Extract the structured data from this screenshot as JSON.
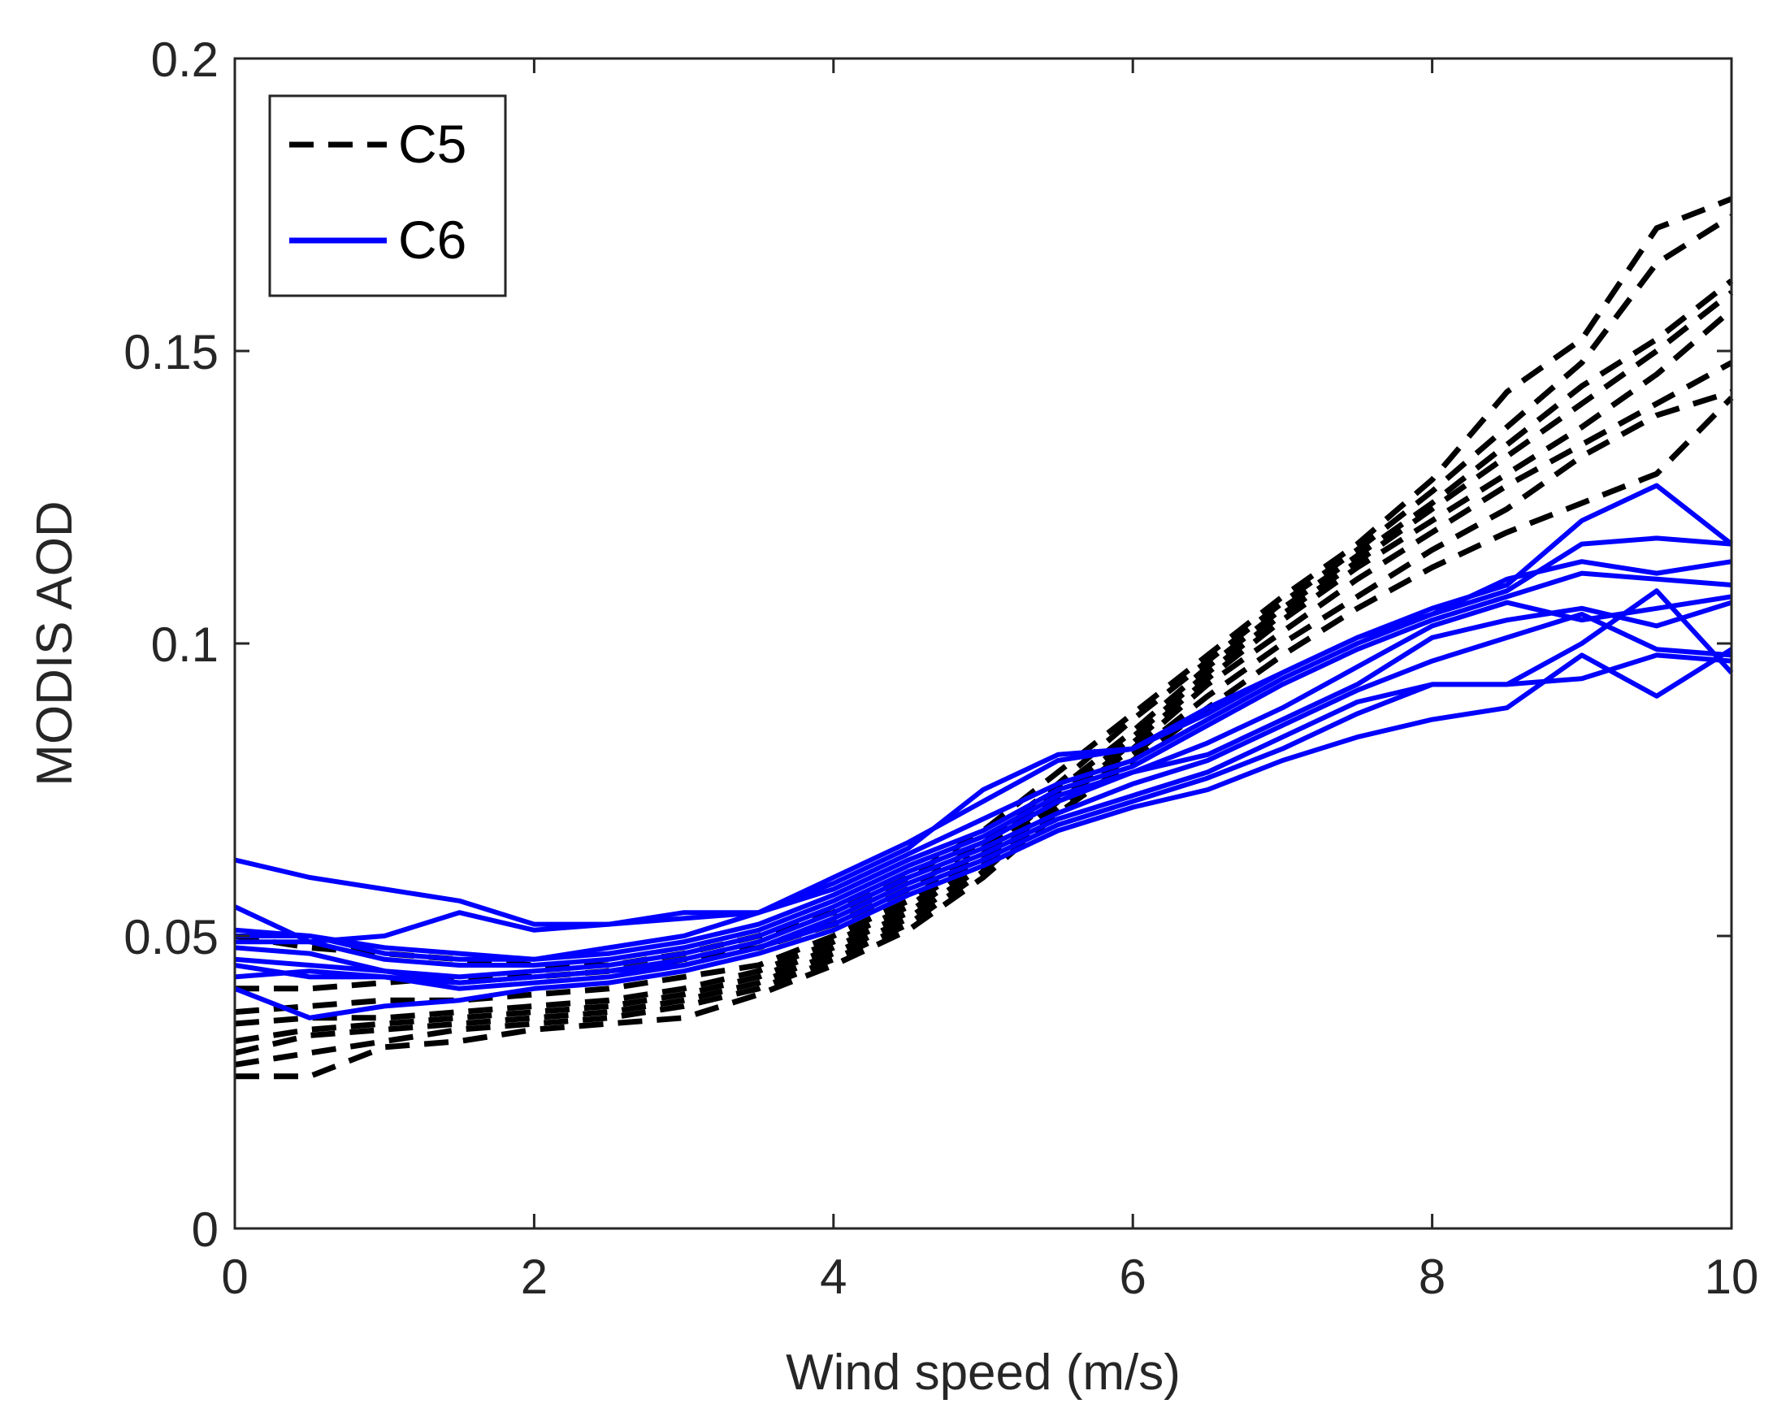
{
  "chart_data": {
    "type": "line",
    "title": "",
    "xlabel": "Wind speed (m/s)",
    "ylabel": "MODIS AOD",
    "xlim": [
      0,
      10
    ],
    "ylim": [
      0,
      0.2
    ],
    "xticks": [
      0,
      2,
      4,
      6,
      8,
      10
    ],
    "yticks": [
      0,
      0.05,
      0.1,
      0.15,
      0.2
    ],
    "xtick_labels": [
      "0",
      "2",
      "4",
      "6",
      "8",
      "10"
    ],
    "ytick_labels": [
      "0",
      "0.05",
      "0.1",
      "0.15",
      "0.2"
    ],
    "grid": false,
    "legend_position": "top-left",
    "x": [
      0,
      0.5,
      1,
      1.5,
      2,
      2.5,
      3,
      3.5,
      4,
      4.5,
      5,
      5.5,
      6,
      6.5,
      7,
      7.5,
      8,
      8.5,
      9,
      9.5,
      10
    ],
    "groups": [
      {
        "name": "C5",
        "color": "#000000",
        "style": "dashed"
      },
      {
        "name": "C6",
        "color": "#0000ff",
        "style": "solid"
      }
    ],
    "series": [
      {
        "name": "C5",
        "group": "C5",
        "values": [
          0.026,
          0.026,
          0.031,
          0.032,
          0.034,
          0.035,
          0.036,
          0.04,
          0.045,
          0.051,
          0.06,
          0.071,
          0.08,
          0.089,
          0.098,
          0.106,
          0.113,
          0.119,
          0.124,
          0.129,
          0.142
        ]
      },
      {
        "name": "C5",
        "group": "C5",
        "values": [
          0.028,
          0.03,
          0.032,
          0.034,
          0.035,
          0.036,
          0.038,
          0.041,
          0.046,
          0.052,
          0.061,
          0.072,
          0.081,
          0.091,
          0.1,
          0.108,
          0.116,
          0.123,
          0.132,
          0.139,
          0.143
        ]
      },
      {
        "name": "C5",
        "group": "C5",
        "values": [
          0.03,
          0.033,
          0.034,
          0.035,
          0.036,
          0.037,
          0.039,
          0.042,
          0.047,
          0.053,
          0.062,
          0.073,
          0.082,
          0.093,
          0.102,
          0.111,
          0.119,
          0.127,
          0.134,
          0.141,
          0.148
        ]
      },
      {
        "name": "C5",
        "group": "C5",
        "values": [
          0.032,
          0.034,
          0.035,
          0.036,
          0.037,
          0.038,
          0.04,
          0.043,
          0.048,
          0.054,
          0.063,
          0.073,
          0.083,
          0.094,
          0.104,
          0.113,
          0.121,
          0.129,
          0.137,
          0.146,
          0.157
        ]
      },
      {
        "name": "C5",
        "group": "C5",
        "values": [
          0.035,
          0.036,
          0.036,
          0.037,
          0.038,
          0.039,
          0.041,
          0.044,
          0.049,
          0.055,
          0.064,
          0.074,
          0.084,
          0.095,
          0.105,
          0.114,
          0.123,
          0.132,
          0.141,
          0.15,
          0.16
        ]
      },
      {
        "name": "C5",
        "group": "C5",
        "values": [
          0.037,
          0.038,
          0.039,
          0.039,
          0.04,
          0.041,
          0.043,
          0.045,
          0.05,
          0.056,
          0.065,
          0.075,
          0.085,
          0.096,
          0.106,
          0.115,
          0.124,
          0.134,
          0.144,
          0.152,
          0.162
        ]
      },
      {
        "name": "C5",
        "group": "C5",
        "values": [
          0.041,
          0.041,
          0.042,
          0.043,
          0.043,
          0.044,
          0.046,
          0.048,
          0.052,
          0.058,
          0.066,
          0.076,
          0.087,
          0.097,
          0.107,
          0.116,
          0.126,
          0.137,
          0.148,
          0.165,
          0.173
        ]
      },
      {
        "name": "C5",
        "group": "C5",
        "values": [
          0.05,
          0.048,
          0.047,
          0.046,
          0.045,
          0.045,
          0.047,
          0.05,
          0.054,
          0.06,
          0.068,
          0.078,
          0.088,
          0.098,
          0.108,
          0.117,
          0.128,
          0.143,
          0.152,
          0.171,
          0.176
        ]
      },
      {
        "name": "C6",
        "group": "C6",
        "values": [
          0.063,
          0.06,
          0.058,
          0.056,
          0.052,
          0.052,
          0.053,
          0.054,
          0.059,
          0.065,
          0.075,
          0.081,
          0.082,
          0.088,
          0.095,
          0.101,
          0.105,
          0.109,
          0.117,
          0.118,
          0.117
        ]
      },
      {
        "name": "C6",
        "group": "C6",
        "values": [
          0.055,
          0.049,
          0.05,
          0.054,
          0.051,
          0.052,
          0.054,
          0.054,
          0.06,
          0.066,
          0.073,
          0.08,
          0.082,
          0.089,
          0.095,
          0.101,
          0.106,
          0.11,
          0.121,
          0.127,
          0.117
        ]
      },
      {
        "name": "C6",
        "group": "C6",
        "values": [
          0.051,
          0.05,
          0.048,
          0.047,
          0.046,
          0.048,
          0.05,
          0.054,
          0.058,
          0.064,
          0.07,
          0.076,
          0.08,
          0.087,
          0.094,
          0.1,
          0.105,
          0.111,
          0.114,
          0.112,
          0.114
        ]
      },
      {
        "name": "C6",
        "group": "C6",
        "values": [
          0.05,
          0.05,
          0.047,
          0.046,
          0.046,
          0.047,
          0.049,
          0.052,
          0.057,
          0.063,
          0.068,
          0.075,
          0.079,
          0.086,
          0.093,
          0.099,
          0.104,
          0.108,
          0.112,
          0.111,
          0.11
        ]
      },
      {
        "name": "C6",
        "group": "C6",
        "values": [
          0.049,
          0.049,
          0.046,
          0.045,
          0.045,
          0.046,
          0.048,
          0.051,
          0.056,
          0.062,
          0.067,
          0.074,
          0.078,
          0.083,
          0.089,
          0.096,
          0.103,
          0.107,
          0.104,
          0.106,
          0.108
        ]
      },
      {
        "name": "C6",
        "group": "C6",
        "values": [
          0.048,
          0.047,
          0.044,
          0.043,
          0.044,
          0.045,
          0.047,
          0.05,
          0.055,
          0.061,
          0.066,
          0.073,
          0.078,
          0.081,
          0.087,
          0.093,
          0.101,
          0.104,
          0.106,
          0.103,
          0.107
        ]
      },
      {
        "name": "C6",
        "group": "C6",
        "values": [
          0.046,
          0.045,
          0.044,
          0.042,
          0.043,
          0.044,
          0.046,
          0.049,
          0.054,
          0.06,
          0.065,
          0.071,
          0.076,
          0.08,
          0.086,
          0.092,
          0.097,
          0.101,
          0.105,
          0.099,
          0.098
        ]
      },
      {
        "name": "C6",
        "group": "C6",
        "values": [
          0.045,
          0.043,
          0.043,
          0.042,
          0.043,
          0.044,
          0.045,
          0.048,
          0.053,
          0.059,
          0.064,
          0.07,
          0.074,
          0.078,
          0.084,
          0.09,
          0.093,
          0.093,
          0.1,
          0.109,
          0.095
        ]
      },
      {
        "name": "C6",
        "group": "C6",
        "values": [
          0.043,
          0.044,
          0.043,
          0.041,
          0.042,
          0.043,
          0.045,
          0.048,
          0.052,
          0.058,
          0.063,
          0.069,
          0.073,
          0.077,
          0.082,
          0.088,
          0.093,
          0.093,
          0.094,
          0.098,
          0.097
        ]
      },
      {
        "name": "C6",
        "group": "C6",
        "values": [
          0.041,
          0.036,
          0.038,
          0.039,
          0.041,
          0.042,
          0.044,
          0.047,
          0.051,
          0.057,
          0.062,
          0.068,
          0.072,
          0.075,
          0.08,
          0.084,
          0.087,
          0.089,
          0.098,
          0.091,
          0.099
        ]
      }
    ]
  }
}
